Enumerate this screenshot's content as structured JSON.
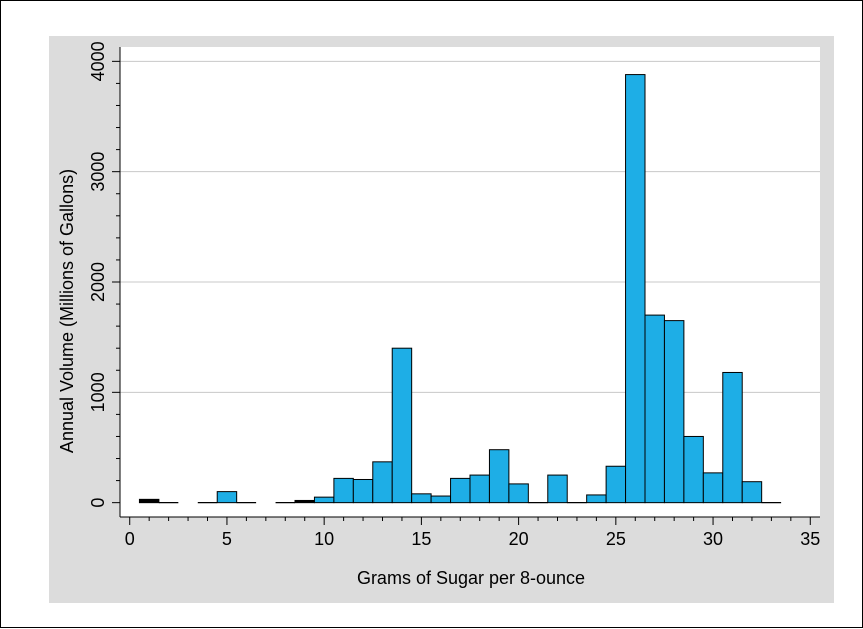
{
  "chart_data": {
    "type": "bar",
    "title": "",
    "xlabel": "Grams of Sugar per 8-ounce",
    "ylabel": "Annual Volume (Millions of Gallons)",
    "xlim": [
      -0.5,
      35.5
    ],
    "ylim": [
      -130,
      4130
    ],
    "xticks": [
      0,
      5,
      10,
      15,
      20,
      25,
      30,
      35
    ],
    "yticks": [
      0,
      1000,
      2000,
      3000,
      4000
    ],
    "grid": true,
    "bin_width": 1,
    "bins": [
      {
        "x0": 0.5,
        "x1": 1.5,
        "value": 30
      },
      {
        "x0": 1.5,
        "x1": 2.5,
        "value": 0
      },
      {
        "x0": 3.5,
        "x1": 4.5,
        "value": 0
      },
      {
        "x0": 4.5,
        "x1": 5.5,
        "value": 100
      },
      {
        "x0": 5.5,
        "x1": 6.5,
        "value": 0
      },
      {
        "x0": 7.5,
        "x1": 8.5,
        "value": 0
      },
      {
        "x0": 8.5,
        "x1": 9.5,
        "value": 20
      },
      {
        "x0": 9.5,
        "x1": 10.5,
        "value": 50
      },
      {
        "x0": 10.5,
        "x1": 11.5,
        "value": 220
      },
      {
        "x0": 11.5,
        "x1": 12.5,
        "value": 210
      },
      {
        "x0": 12.5,
        "x1": 13.5,
        "value": 370
      },
      {
        "x0": 13.5,
        "x1": 14.5,
        "value": 1400
      },
      {
        "x0": 14.5,
        "x1": 15.5,
        "value": 80
      },
      {
        "x0": 15.5,
        "x1": 16.5,
        "value": 60
      },
      {
        "x0": 16.5,
        "x1": 17.5,
        "value": 220
      },
      {
        "x0": 17.5,
        "x1": 18.5,
        "value": 250
      },
      {
        "x0": 18.5,
        "x1": 19.5,
        "value": 480
      },
      {
        "x0": 19.5,
        "x1": 20.5,
        "value": 170
      },
      {
        "x0": 20.5,
        "x1": 21.5,
        "value": 0
      },
      {
        "x0": 21.5,
        "x1": 22.5,
        "value": 250
      },
      {
        "x0": 22.5,
        "x1": 23.5,
        "value": 0
      },
      {
        "x0": 23.5,
        "x1": 24.5,
        "value": 70
      },
      {
        "x0": 24.5,
        "x1": 25.5,
        "value": 330
      },
      {
        "x0": 25.5,
        "x1": 26.5,
        "value": 3880
      },
      {
        "x0": 26.5,
        "x1": 27.5,
        "value": 1700
      },
      {
        "x0": 27.5,
        "x1": 28.5,
        "value": 1650
      },
      {
        "x0": 28.5,
        "x1": 29.5,
        "value": 600
      },
      {
        "x0": 29.5,
        "x1": 30.5,
        "value": 270
      },
      {
        "x0": 30.5,
        "x1": 31.5,
        "value": 1180
      },
      {
        "x0": 31.5,
        "x1": 32.5,
        "value": 190
      },
      {
        "x0": 32.5,
        "x1": 33.5,
        "value": 0
      }
    ],
    "colors": {
      "bar_fill": "#1eaee6",
      "bar_edge": "#000000",
      "plot_bg": "#ffffff",
      "outer_bg": "#dcdcdc",
      "grid": "#c8c8c8"
    }
  }
}
